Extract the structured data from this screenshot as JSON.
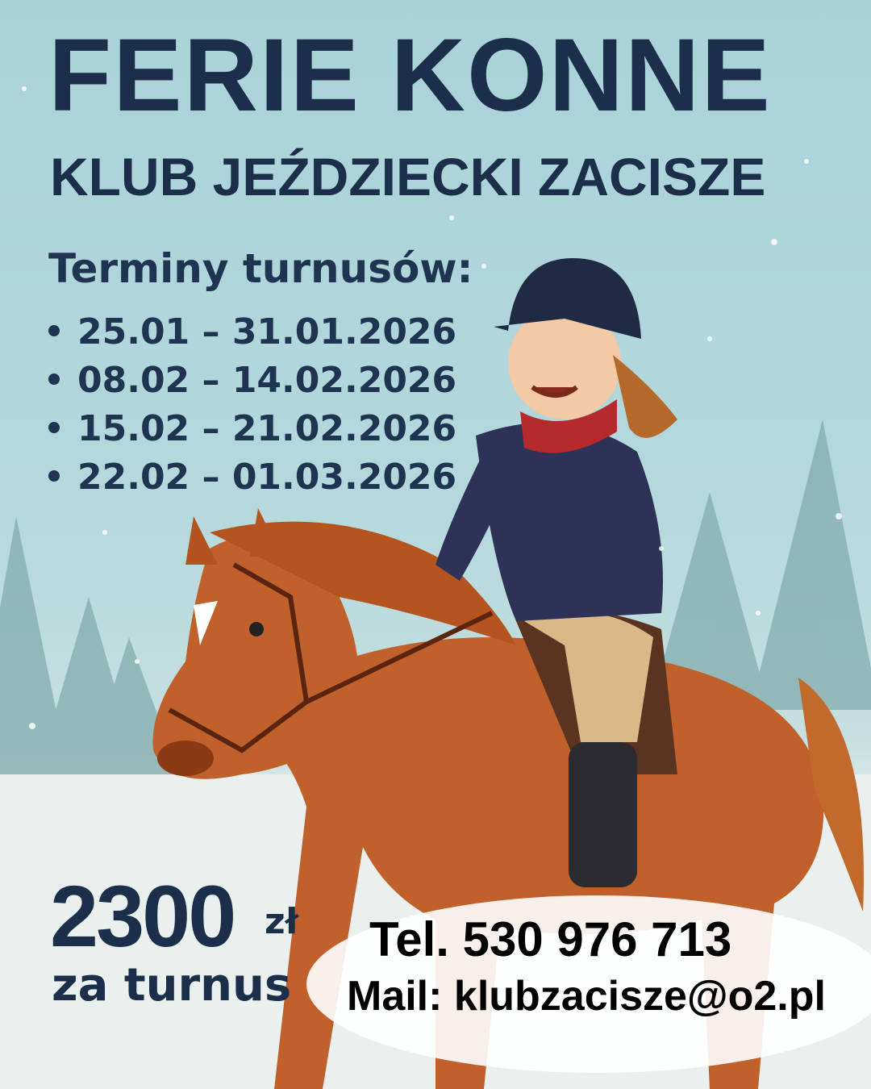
{
  "poster": {
    "title": "FERIE KONNE",
    "subtitle": "KLUB JEŹDZIECKI ZACISZE",
    "dates_heading": "Terminy turnusów:",
    "dates": [
      "25.01 – 31.01.2026",
      "08.02 – 14.02.2026",
      "15.02 – 21.02.2026",
      "22.02 – 01.03.2026"
    ],
    "price": "2300",
    "currency": "zł",
    "price_unit": "za turnus",
    "phone": "Tel. 530 976 713",
    "email": "Mail: klubzacisze@o2.pl"
  },
  "colors": {
    "text_dark": "#1b2f4a",
    "sky": "#a9d2d8",
    "snow": "#eef3f1",
    "horse": "#c0602a",
    "jacket": "#2f3257",
    "scarf": "#b52a2a"
  }
}
